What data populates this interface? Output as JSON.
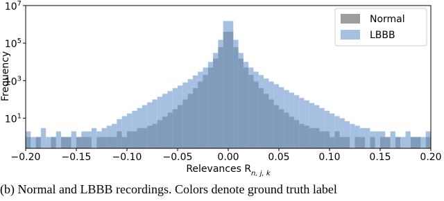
{
  "chart_data": {
    "type": "histogram",
    "xlabel": "Relevances R_{n, j, k}",
    "ylabel": "Frequency",
    "caption": "(b) Normal and LBBB recordings. Colors denote ground truth label",
    "bins": [
      -0.2,
      -0.195,
      -0.19,
      -0.185,
      -0.18,
      -0.175,
      -0.17,
      -0.165,
      -0.16,
      -0.155,
      -0.15,
      -0.145,
      -0.14,
      -0.135,
      -0.13,
      -0.125,
      -0.12,
      -0.115,
      -0.11,
      -0.105,
      -0.1,
      -0.095,
      -0.09,
      -0.085,
      -0.08,
      -0.075,
      -0.07,
      -0.065,
      -0.06,
      -0.055,
      -0.05,
      -0.045,
      -0.04,
      -0.035,
      -0.03,
      -0.025,
      -0.02,
      -0.015,
      -0.01,
      -0.005,
      0,
      0.005,
      0.01,
      0.015,
      0.02,
      0.025,
      0.03,
      0.035,
      0.04,
      0.045,
      0.05,
      0.055,
      0.06,
      0.065,
      0.07,
      0.075,
      0.08,
      0.085,
      0.09,
      0.095,
      0.1,
      0.105,
      0.11,
      0.115,
      0.12,
      0.125,
      0.13,
      0.135,
      0.14,
      0.145,
      0.15,
      0.155,
      0.16,
      0.165,
      0.17,
      0.175,
      0.18,
      0.185,
      0.19,
      0.195,
      0.2
    ],
    "series": [
      {
        "name": "Normal",
        "color": "#8c8c8c",
        "values": [
          1,
          0,
          1,
          0,
          0,
          1,
          0,
          1,
          1,
          0,
          1,
          1,
          1,
          0,
          1,
          1,
          1,
          1,
          2,
          1,
          2,
          2,
          3,
          3,
          4,
          5,
          8,
          12,
          20,
          30,
          50,
          100,
          200,
          400,
          900,
          2000,
          5000,
          15000,
          60000,
          400000,
          400000,
          60000,
          15000,
          5000,
          2000,
          900,
          400,
          200,
          100,
          50,
          30,
          20,
          12,
          8,
          5,
          4,
          3,
          3,
          2,
          2,
          1,
          2,
          1,
          1,
          0,
          1,
          1,
          0,
          1,
          0,
          1,
          1,
          0,
          1,
          0,
          0,
          1,
          1,
          0,
          1
        ]
      },
      {
        "name": "LBBB",
        "color": "#6f9ad0",
        "values": [
          2,
          1,
          1,
          3,
          1,
          1,
          2,
          1,
          1,
          2,
          1,
          2,
          2,
          3,
          2,
          3,
          4,
          5,
          9,
          13,
          18,
          25,
          35,
          50,
          70,
          100,
          140,
          200,
          280,
          400,
          550,
          800,
          1200,
          1900,
          3000,
          5000,
          10000,
          30000,
          150000,
          1500000,
          1500000,
          150000,
          30000,
          10000,
          5000,
          3000,
          2000,
          1300,
          900,
          650,
          450,
          320,
          230,
          170,
          120,
          90,
          65,
          50,
          35,
          25,
          18,
          13,
          10,
          7,
          5,
          4,
          3,
          3,
          2,
          2,
          2,
          1,
          2,
          1,
          1,
          2,
          1,
          1,
          1,
          2
        ]
      }
    ],
    "log_y": true,
    "legend": "upper right",
    "xlim": [
      -0.2,
      0.2
    ],
    "xticks": [
      {
        "value": -0.2,
        "label": "−0.20"
      },
      {
        "value": -0.15,
        "label": "−0.15"
      },
      {
        "value": -0.1,
        "label": "−0.10"
      },
      {
        "value": -0.05,
        "label": "−0.05"
      },
      {
        "value": 0,
        "label": "0.00"
      },
      {
        "value": 0.05,
        "label": "0.05"
      },
      {
        "value": 0.1,
        "label": "0.10"
      },
      {
        "value": 0.15,
        "label": "0.15"
      },
      {
        "value": 0.2,
        "label": "0.20"
      }
    ],
    "ylim": [
      0.25,
      10000000
    ],
    "yticks": [
      {
        "value": 10,
        "label": "10^1"
      },
      {
        "value": 1000,
        "label": "10^3"
      },
      {
        "value": 100000,
        "label": "10^5"
      },
      {
        "value": 10000000,
        "label": "10^7"
      }
    ]
  }
}
